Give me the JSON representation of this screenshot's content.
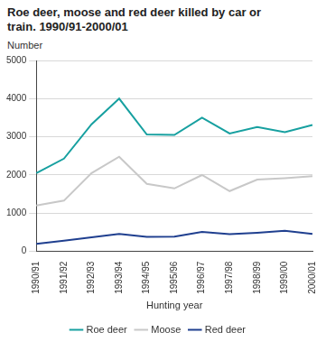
{
  "chart_data": {
    "type": "line",
    "title": "Roe deer, moose and red deer killed by car or train. 1990/91-2000/01",
    "y_label": "Number",
    "x_label": "Hunting year",
    "categories": [
      "1990/91",
      "1991/92",
      "1992/93",
      "1993/94",
      "1994/95",
      "1995/96",
      "1996/97",
      "1997/98",
      "1998/99",
      "1999/00",
      "2000/01"
    ],
    "series": [
      {
        "name": "Roe deer",
        "color": "#17a0a0",
        "values": [
          2050,
          2430,
          3330,
          4000,
          3060,
          3050,
          3500,
          3090,
          3260,
          3120,
          3310
        ]
      },
      {
        "name": "Moose",
        "color": "#c8c8c8",
        "values": [
          1200,
          1330,
          2050,
          2480,
          1770,
          1650,
          2000,
          1580,
          1880,
          1920,
          1970
        ]
      },
      {
        "name": "Red deer",
        "color": "#1f3f8f",
        "values": [
          200,
          280,
          370,
          460,
          380,
          390,
          510,
          450,
          490,
          540,
          460
        ]
      }
    ],
    "ylim": [
      0,
      5000
    ],
    "yticks": [
      0,
      1000,
      2000,
      3000,
      4000,
      5000
    ],
    "grid": true,
    "legend": "bottom"
  }
}
